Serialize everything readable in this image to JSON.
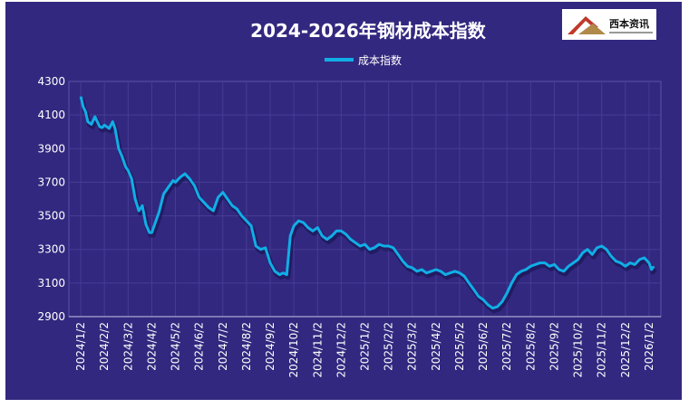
{
  "chart_data": {
    "type": "line",
    "title": "2024-2026年钢材成本指数",
    "xlabel": "",
    "ylabel": "",
    "ylim": [
      2900,
      4300
    ],
    "yticks": [
      2900,
      3100,
      3300,
      3500,
      3700,
      3900,
      4100,
      4300
    ],
    "categories": [
      "2024/1/2",
      "2024/2/2",
      "2024/3/2",
      "2024/4/2",
      "2024/5/2",
      "2024/6/2",
      "2024/7/2",
      "2024/8/2",
      "2024/9/2",
      "2024/10/2",
      "2024/11/2",
      "2024/12/2",
      "2025/1/2",
      "2025/2/2",
      "2025/3/2",
      "2025/4/2",
      "2025/5/2",
      "2025/6/2",
      "2025/7/2",
      "2025/8/2",
      "2025/9/2",
      "2025/10/2",
      "2025/11/2",
      "2025/12/2",
      "2026/1/2"
    ],
    "legend_position": "top-center",
    "grid": true,
    "series": [
      {
        "name": "成本指数",
        "color": "#11aee6",
        "points": [
          [
            0,
            4210
          ],
          [
            0.1,
            4150
          ],
          [
            0.2,
            4120
          ],
          [
            0.3,
            4060
          ],
          [
            0.45,
            4045
          ],
          [
            0.6,
            4090
          ],
          [
            0.8,
            4030
          ],
          [
            0.9,
            4025
          ],
          [
            1.0,
            4040
          ],
          [
            1.2,
            4020
          ],
          [
            1.35,
            4060
          ],
          [
            1.45,
            4020
          ],
          [
            1.6,
            3900
          ],
          [
            1.75,
            3850
          ],
          [
            1.9,
            3790
          ],
          [
            2.0,
            3770
          ],
          [
            2.15,
            3720
          ],
          [
            2.3,
            3600
          ],
          [
            2.45,
            3530
          ],
          [
            2.6,
            3560
          ],
          [
            2.75,
            3450
          ],
          [
            2.9,
            3400
          ],
          [
            3.0,
            3400
          ],
          [
            3.1,
            3440
          ],
          [
            3.3,
            3520
          ],
          [
            3.5,
            3630
          ],
          [
            3.7,
            3670
          ],
          [
            3.9,
            3710
          ],
          [
            4.0,
            3700
          ],
          [
            4.2,
            3730
          ],
          [
            4.4,
            3750
          ],
          [
            4.6,
            3720
          ],
          [
            4.8,
            3680
          ],
          [
            5.0,
            3610
          ],
          [
            5.2,
            3580
          ],
          [
            5.4,
            3550
          ],
          [
            5.6,
            3530
          ],
          [
            5.8,
            3610
          ],
          [
            6.0,
            3640
          ],
          [
            6.2,
            3600
          ],
          [
            6.4,
            3560
          ],
          [
            6.6,
            3540
          ],
          [
            6.8,
            3500
          ],
          [
            7.0,
            3470
          ],
          [
            7.2,
            3440
          ],
          [
            7.4,
            3320
          ],
          [
            7.6,
            3300
          ],
          [
            7.8,
            3310
          ],
          [
            8.0,
            3220
          ],
          [
            8.2,
            3170
          ],
          [
            8.4,
            3150
          ],
          [
            8.55,
            3160
          ],
          [
            8.7,
            3150
          ],
          [
            8.85,
            3380
          ],
          [
            9.0,
            3440
          ],
          [
            9.2,
            3470
          ],
          [
            9.4,
            3460
          ],
          [
            9.6,
            3430
          ],
          [
            9.8,
            3410
          ],
          [
            10.0,
            3430
          ],
          [
            10.2,
            3380
          ],
          [
            10.4,
            3360
          ],
          [
            10.6,
            3380
          ],
          [
            10.8,
            3410
          ],
          [
            11.0,
            3410
          ],
          [
            11.2,
            3390
          ],
          [
            11.4,
            3360
          ],
          [
            11.6,
            3340
          ],
          [
            11.8,
            3320
          ],
          [
            12.0,
            3330
          ],
          [
            12.2,
            3300
          ],
          [
            12.4,
            3310
          ],
          [
            12.6,
            3330
          ],
          [
            12.8,
            3320
          ],
          [
            13.0,
            3320
          ],
          [
            13.2,
            3310
          ],
          [
            13.4,
            3270
          ],
          [
            13.6,
            3230
          ],
          [
            13.8,
            3200
          ],
          [
            14.0,
            3190
          ],
          [
            14.2,
            3170
          ],
          [
            14.4,
            3180
          ],
          [
            14.6,
            3160
          ],
          [
            14.8,
            3170
          ],
          [
            15.0,
            3180
          ],
          [
            15.2,
            3170
          ],
          [
            15.4,
            3150
          ],
          [
            15.6,
            3160
          ],
          [
            15.8,
            3170
          ],
          [
            16.0,
            3160
          ],
          [
            16.2,
            3140
          ],
          [
            16.4,
            3100
          ],
          [
            16.6,
            3060
          ],
          [
            16.8,
            3020
          ],
          [
            17.0,
            3000
          ],
          [
            17.2,
            2970
          ],
          [
            17.4,
            2950
          ],
          [
            17.6,
            2960
          ],
          [
            17.8,
            2990
          ],
          [
            18.0,
            3040
          ],
          [
            18.2,
            3100
          ],
          [
            18.4,
            3150
          ],
          [
            18.6,
            3170
          ],
          [
            18.8,
            3180
          ],
          [
            19.0,
            3200
          ],
          [
            19.2,
            3210
          ],
          [
            19.4,
            3220
          ],
          [
            19.6,
            3220
          ],
          [
            19.8,
            3200
          ],
          [
            20.0,
            3210
          ],
          [
            20.2,
            3180
          ],
          [
            20.4,
            3170
          ],
          [
            20.6,
            3200
          ],
          [
            20.8,
            3220
          ],
          [
            21.0,
            3240
          ],
          [
            21.2,
            3280
          ],
          [
            21.4,
            3300
          ],
          [
            21.6,
            3270
          ],
          [
            21.8,
            3310
          ],
          [
            22.0,
            3320
          ],
          [
            22.2,
            3300
          ],
          [
            22.4,
            3260
          ],
          [
            22.6,
            3230
          ],
          [
            22.8,
            3220
          ],
          [
            23.0,
            3200
          ],
          [
            23.2,
            3220
          ],
          [
            23.4,
            3210
          ],
          [
            23.6,
            3240
          ],
          [
            23.8,
            3250
          ],
          [
            24.0,
            3220
          ],
          [
            24.1,
            3180
          ],
          [
            24.2,
            3200
          ]
        ]
      }
    ]
  }
}
